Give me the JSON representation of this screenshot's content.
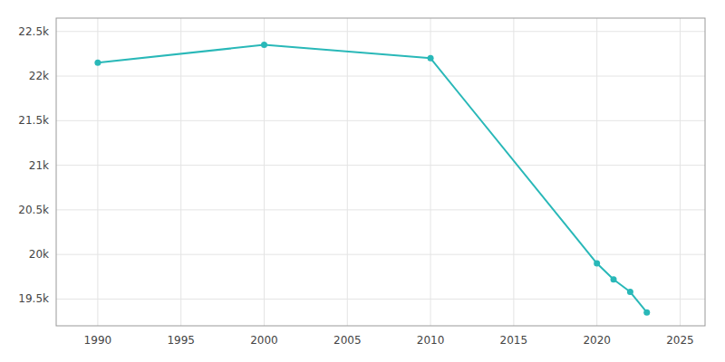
{
  "chart_data": {
    "type": "line",
    "x": [
      1990,
      2000,
      2010,
      2020,
      2021,
      2022,
      2023
    ],
    "values": [
      22150,
      22350,
      22200,
      19900,
      19720,
      19580,
      19350
    ],
    "color": "#29b8b8",
    "marker": "circle",
    "xlim": [
      1987.5,
      2026.5
    ],
    "xticks": [
      1990,
      1995,
      2000,
      2005,
      2010,
      2015,
      2020,
      2025
    ],
    "ylim": [
      19200,
      22650
    ],
    "yticks": [
      {
        "value": 19500,
        "label": "19.5k"
      },
      {
        "value": 20000,
        "label": "20k"
      },
      {
        "value": 20500,
        "label": "20.5k"
      },
      {
        "value": 21000,
        "label": "21k"
      },
      {
        "value": 21500,
        "label": "21.5k"
      },
      {
        "value": 22000,
        "label": "22k"
      },
      {
        "value": 22500,
        "label": "22.5k"
      }
    ],
    "grid": true
  }
}
